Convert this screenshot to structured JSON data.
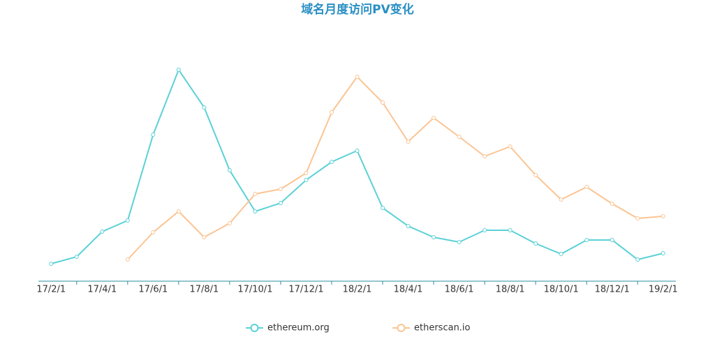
{
  "chart_data": {
    "type": "line",
    "title": "域名月度访问PV变化",
    "categories": [
      "17/2/1",
      null,
      "17/4/1",
      null,
      "17/6/1",
      null,
      "17/8/1",
      null,
      "17/10/1",
      null,
      "17/12/1",
      null,
      "18/2/1",
      null,
      "18/4/1",
      null,
      "18/6/1",
      null,
      "18/8/1",
      null,
      "18/10/1",
      null,
      "18/12/1",
      null,
      "19/2/1"
    ],
    "series": [
      {
        "name": "ethereum.org",
        "color": "#5bd1d7",
        "values": [
          25,
          35,
          71,
          87,
          210,
          303,
          249,
          159,
          100,
          112,
          145,
          171,
          187,
          105,
          79,
          63,
          56,
          73,
          73,
          54,
          39,
          59,
          59,
          31,
          40
        ]
      },
      {
        "name": "etherscan.io",
        "color": "#fbc493",
        "values": [
          null,
          null,
          null,
          31,
          70,
          100,
          63,
          83,
          125,
          132,
          155,
          242,
          293,
          256,
          200,
          234,
          207,
          179,
          193,
          152,
          117,
          135,
          111,
          90,
          93
        ]
      }
    ],
    "ylim": [
      0,
      330
    ]
  }
}
